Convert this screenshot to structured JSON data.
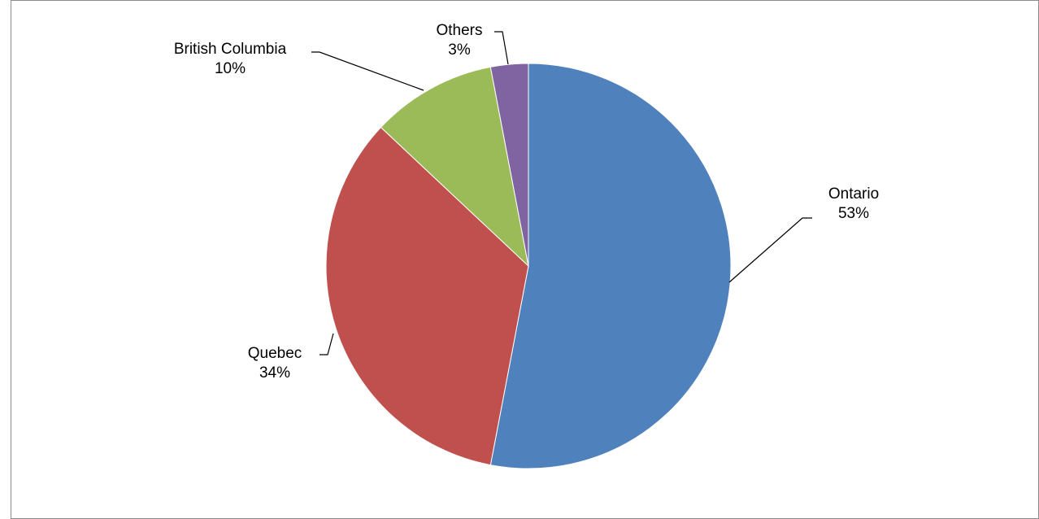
{
  "chart_data": {
    "type": "pie",
    "title": "",
    "slices": [
      {
        "label": "Ontario",
        "value": 53,
        "percent_label": "53%",
        "color": "#4F81BD"
      },
      {
        "label": "Quebec",
        "value": 34,
        "percent_label": "34%",
        "color": "#C0504D"
      },
      {
        "label": "British Columbia",
        "value": 10,
        "percent_label": "10%",
        "color": "#9BBB59"
      },
      {
        "label": "Others",
        "value": 3,
        "percent_label": "3%",
        "color": "#8064A2"
      }
    ],
    "start_angle": "12 o'clock",
    "direction": "clockwise",
    "legend": "none",
    "data_labels": "outside with leader lines"
  }
}
